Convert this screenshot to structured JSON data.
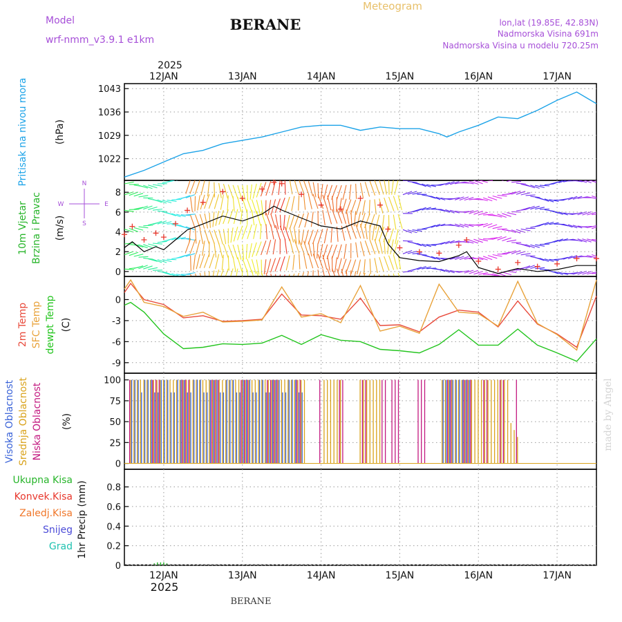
{
  "header": {
    "model_label": "Model",
    "model_name": "wrf-nmm_v3.9.1  e1km",
    "station": "BERANE",
    "title": "Meteogram",
    "lonlat": "lon,lat (19.85E, 42.83N)",
    "elevation": "Nadmorska Visina 691m",
    "model_elevation": "Nadmorska Visina u modelu 720.25m",
    "footer_station": "BERANE",
    "watermark": "made by Angel"
  },
  "colors": {
    "pressure": "#1ca3e8",
    "wind_speed": "#000000",
    "gust": "#e8372c",
    "temp2m": "#e8493a",
    "sfc_temp": "#e8a23a",
    "dewpoint": "#22c41d",
    "cloud_high": "#3a63d8",
    "cloud_mid": "#d9a21a",
    "cloud_low": "#c2187f",
    "precip_total": "#27b52a",
    "precip_conv": "#e8372c",
    "precip_frz": "#f0772a",
    "precip_snow": "#4b4bd8",
    "precip_graupel": "#1fc2b0",
    "grid": "#9a9a9a",
    "watermark": "#d9d9d9",
    "title_meteogram": "#e8c06a",
    "header_purple": "#a64fd8"
  },
  "time_axis": {
    "year": "2025",
    "day_labels": [
      "12JAN",
      "13JAN",
      "14JAN",
      "15JAN",
      "16JAN",
      "17JAN"
    ],
    "day_positions": [
      12,
      13,
      14,
      15,
      16,
      17
    ],
    "range": [
      11.5,
      17.5
    ]
  },
  "chart_data": [
    {
      "type": "line",
      "panel": "pressure",
      "ylabel_lines": [
        "Pritisak na nivou mora"
      ],
      "unit": "(hPa)",
      "yticks": [
        "1043",
        "1036",
        "1029",
        "1022"
      ],
      "ytick_values": [
        1043,
        1036,
        1029,
        1022
      ],
      "ylim": [
        1015.5,
        1044.5
      ],
      "grid": true,
      "series": [
        {
          "values_x": [
            11.5,
            11.75,
            12.0,
            12.25,
            12.5,
            12.75,
            13.0,
            13.25,
            13.5,
            13.75,
            14.0,
            14.25,
            14.5,
            14.75,
            15.0,
            15.25,
            15.5,
            15.6,
            15.75,
            16.0,
            16.25,
            16.5,
            16.75,
            17.0,
            17.25,
            17.5
          ],
          "values_y": [
            1016.5,
            1018.5,
            1021.0,
            1023.5,
            1024.5,
            1026.5,
            1027.5,
            1028.5,
            1030.0,
            1031.5,
            1032.0,
            1032.0,
            1030.5,
            1031.5,
            1031.0,
            1031.0,
            1029.5,
            1028.5,
            1030.0,
            1032.0,
            1034.5,
            1034.0,
            1036.5,
            1039.5,
            1042.0,
            1038.5
          ]
        }
      ]
    },
    {
      "type": "line",
      "panel": "wind",
      "ylabel_lines": [
        "10m Vjetar",
        "Brzina i Pravac"
      ],
      "unit": "(m/s)",
      "compass": {
        "n": "N",
        "w": "W",
        "e": "E",
        "s": "S"
      },
      "yticks": [
        "8",
        "6",
        "4",
        "2",
        "0"
      ],
      "ytick_values": [
        8,
        6,
        4,
        2,
        0
      ],
      "ylim": [
        -0.5,
        9.2
      ],
      "grid": true,
      "series": [
        {
          "values_x": [
            11.5,
            11.6,
            11.75,
            11.9,
            12.0,
            12.15,
            12.3,
            12.5,
            12.75,
            13.0,
            13.25,
            13.4,
            13.5,
            13.75,
            14.0,
            14.25,
            14.5,
            14.75,
            14.85,
            15.0,
            15.25,
            15.5,
            15.75,
            15.85,
            16.0,
            16.25,
            16.5,
            16.75,
            17.0,
            17.25,
            17.5
          ],
          "values_y": [
            2.4,
            3.0,
            2.0,
            2.5,
            2.2,
            3.2,
            4.2,
            4.8,
            5.6,
            5.1,
            5.8,
            6.6,
            6.2,
            5.4,
            4.6,
            4.3,
            5.1,
            4.6,
            2.8,
            1.4,
            1.1,
            1.0,
            1.6,
            2.0,
            0.4,
            -0.2,
            0.3,
            0.0,
            0.2,
            0.6,
            0.6
          ]
        }
      ],
      "note": "colored wind barbs fill the panel background; red plus markers trace gust values"
    },
    {
      "type": "line",
      "panel": "temperature",
      "ylabel_lines": [
        "2m Temp",
        "SFC Temp",
        "dewpt Temp"
      ],
      "unit": "(C)",
      "yticks": [
        "0",
        "-3",
        "-6",
        "-9"
      ],
      "ytick_values": [
        0,
        -3,
        -6,
        -9
      ],
      "ylim": [
        -10.5,
        3.3
      ],
      "grid": true,
      "series": [
        {
          "name": "2m Temp",
          "values_x": [
            11.5,
            11.58,
            11.75,
            12.0,
            12.25,
            12.5,
            12.75,
            13.0,
            13.25,
            13.5,
            13.75,
            14.0,
            14.25,
            14.5,
            14.75,
            15.0,
            15.25,
            15.5,
            15.75,
            16.0,
            16.25,
            16.5,
            16.75,
            17.0,
            17.25,
            17.5
          ],
          "values_y": [
            1.0,
            2.3,
            0.0,
            -0.7,
            -2.6,
            -2.3,
            -3.1,
            -3.0,
            -2.8,
            0.8,
            -2.2,
            -2.3,
            -2.8,
            0.2,
            -3.7,
            -3.6,
            -4.6,
            -2.5,
            -1.5,
            -1.8,
            -3.9,
            -0.2,
            -3.5,
            -4.9,
            -6.8,
            0.5
          ]
        },
        {
          "name": "SFC Temp",
          "values_x": [
            11.5,
            11.58,
            11.75,
            12.0,
            12.25,
            12.5,
            12.75,
            13.0,
            13.25,
            13.5,
            13.75,
            14.0,
            14.25,
            14.5,
            14.75,
            15.0,
            15.25,
            15.5,
            15.75,
            16.0,
            16.25,
            16.5,
            16.75,
            17.0,
            17.25,
            17.5
          ],
          "values_y": [
            1.5,
            2.8,
            -0.4,
            -1.0,
            -2.4,
            -1.8,
            -3.2,
            -3.1,
            -2.9,
            1.8,
            -2.5,
            -2.0,
            -3.3,
            2.0,
            -4.5,
            -3.8,
            -4.8,
            2.2,
            -1.8,
            -2.0,
            -3.8,
            2.6,
            -3.4,
            -5.0,
            -7.2,
            2.8
          ]
        },
        {
          "name": "dewpt Temp",
          "values_x": [
            11.5,
            11.58,
            11.75,
            12.0,
            12.25,
            12.5,
            12.75,
            13.0,
            13.25,
            13.5,
            13.75,
            14.0,
            14.25,
            14.5,
            14.75,
            15.0,
            15.25,
            15.5,
            15.75,
            16.0,
            16.25,
            16.5,
            16.75,
            17.0,
            17.25,
            17.5
          ],
          "values_y": [
            -0.8,
            -0.4,
            -1.8,
            -4.9,
            -7.0,
            -6.8,
            -6.3,
            -6.4,
            -6.2,
            -5.1,
            -6.4,
            -5.0,
            -5.8,
            -6.0,
            -7.1,
            -7.3,
            -7.6,
            -6.4,
            -4.3,
            -6.5,
            -6.5,
            -4.2,
            -6.5,
            -7.6,
            -8.8,
            -5.6
          ]
        }
      ]
    },
    {
      "type": "bar",
      "panel": "clouds",
      "ylabel_lines": [
        "Visoka Oblacnost",
        "Srednja Oblacnost",
        "Niska Oblacnost"
      ],
      "unit": "(%)",
      "yticks": [
        "100",
        "75",
        "50",
        "25",
        "0"
      ],
      "ytick_values": [
        100,
        75,
        50,
        25,
        0
      ],
      "ylim": [
        -7,
        108
      ],
      "grid": true,
      "note": "dense hourly vertical bars of high, mid and low cloud cover (values 0-100%)"
    },
    {
      "type": "bar",
      "panel": "precipitation",
      "ylabel_lines": [
        "1hr Precip (mm)"
      ],
      "legend": [
        "Ukupna Kisa",
        "Konvek.Kisa",
        "Zaledj.Kisa",
        "Snijeg",
        "Grad"
      ],
      "yticks": [
        "0.8",
        "0.6",
        "0.4",
        "0.2",
        "0"
      ],
      "ytick_values": [
        0.8,
        0.6,
        0.4,
        0.2,
        0
      ],
      "ylim": [
        0,
        0.98
      ],
      "grid": true,
      "series": [
        {
          "name": "Ukupna Kisa",
          "values_x": [
            11.88,
            11.92,
            11.96,
            12.0,
            12.04
          ],
          "values_y": [
            0.02,
            0.03,
            0.03,
            0.03,
            0.02
          ]
        }
      ]
    }
  ]
}
